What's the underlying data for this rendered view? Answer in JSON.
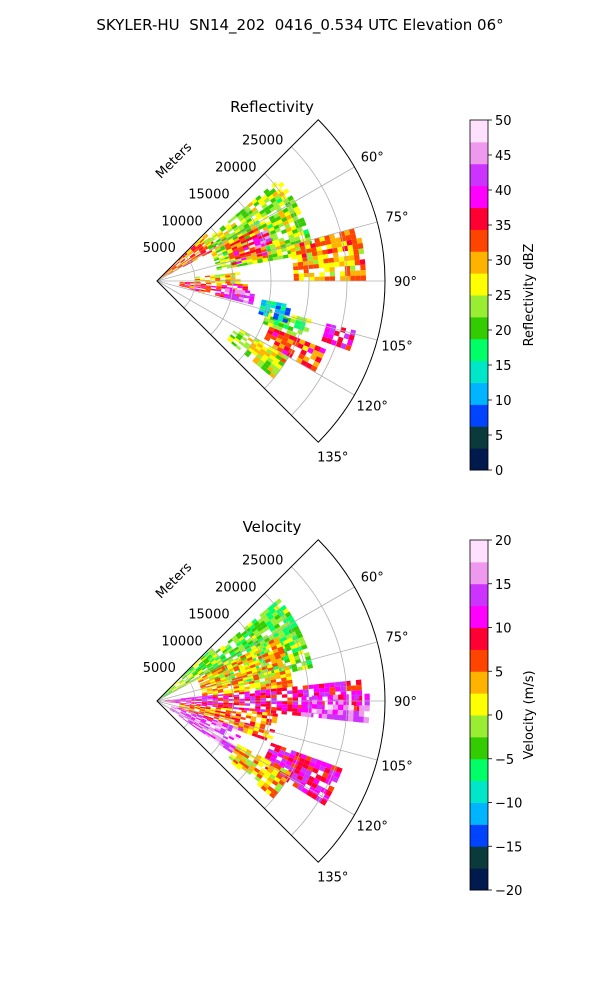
{
  "figure": {
    "title": "SKYLER-HU  SN14_202  0416_0.534 UTC Elevation 06°"
  },
  "chart_data": [
    {
      "type": "polar-sector",
      "title": "Reflectivity",
      "radial_label": "Meters",
      "radial_ticks": [
        5000,
        10000,
        15000,
        20000,
        25000
      ],
      "radial_max": 30000,
      "azimuth_range_deg": [
        45,
        135
      ],
      "angular_ticks": [
        "60°",
        "75°",
        "90°",
        "105°",
        "120°",
        "135°"
      ],
      "angular_tick_values": [
        60,
        75,
        90,
        105,
        120,
        135
      ],
      "colorbar": {
        "label": "Reflectivity dBZ",
        "range": [
          0,
          50
        ],
        "ticks": [
          0,
          5,
          10,
          15,
          20,
          25,
          30,
          35,
          40,
          45,
          50
        ],
        "colors": [
          "#001a4d",
          "#0a3a3a",
          "#0044ff",
          "#00b4ff",
          "#00e6c8",
          "#00ff66",
          "#33cc00",
          "#99ee33",
          "#ffff00",
          "#ffb300",
          "#ff4400",
          "#ff0033",
          "#ff00ff",
          "#cc33ff",
          "#ee99ee",
          "#ffe0ff"
        ]
      },
      "echo_regions": [
        {
          "az": [
            46,
            62
          ],
          "r": [
            300,
            9000
          ],
          "dbz": 32
        },
        {
          "az": [
            50,
            80
          ],
          "r": [
            8000,
            21000
          ],
          "dbz": 24
        },
        {
          "az": [
            62,
            78
          ],
          "r": [
            10000,
            15000
          ],
          "dbz": 33
        },
        {
          "az": [
            65,
            72
          ],
          "r": [
            13000,
            16000
          ],
          "dbz": 42
        },
        {
          "az": [
            75,
            90
          ],
          "r": [
            18000,
            27500
          ],
          "dbz": 30
        },
        {
          "az": [
            84,
            92
          ],
          "r": [
            5000,
            11000
          ],
          "dbz": 28
        },
        {
          "az": [
            92,
            104
          ],
          "r": [
            3000,
            12000
          ],
          "dbz": 34
        },
        {
          "az": [
            96,
            104
          ],
          "r": [
            9000,
            13000
          ],
          "dbz": 43
        },
        {
          "az": [
            104,
            112
          ],
          "r": [
            15000,
            21000
          ],
          "dbz": 21
        },
        {
          "az": [
            112,
            120
          ],
          "r": [
            16000,
            24000
          ],
          "dbz": 33
        },
        {
          "az": [
            104,
            110
          ],
          "r": [
            23000,
            27000
          ],
          "dbz": 38
        },
        {
          "az": [
            120,
            130
          ],
          "r": [
            12000,
            20000
          ],
          "dbz": 26
        },
        {
          "az": [
            100,
            108
          ],
          "r": [
            14000,
            18000
          ],
          "dbz": 12
        }
      ]
    },
    {
      "type": "polar-sector",
      "title": "Velocity",
      "radial_label": "Meters",
      "radial_ticks": [
        5000,
        10000,
        15000,
        20000,
        25000
      ],
      "radial_max": 30000,
      "azimuth_range_deg": [
        45,
        135
      ],
      "angular_ticks": [
        "60°",
        "75°",
        "90°",
        "105°",
        "120°",
        "135°"
      ],
      "angular_tick_values": [
        60,
        75,
        90,
        105,
        120,
        135
      ],
      "colorbar": {
        "label": "Velocity (m/s)",
        "range": [
          -20,
          20
        ],
        "ticks": [
          -20,
          -15,
          -10,
          -5,
          0,
          5,
          10,
          15,
          20
        ],
        "colors": [
          "#001a4d",
          "#0a3a3a",
          "#0044ff",
          "#00b4ff",
          "#00e6c8",
          "#00ff66",
          "#33cc00",
          "#99ee33",
          "#ffff00",
          "#ffb300",
          "#ff4400",
          "#ff0033",
          "#ff00ff",
          "#cc33ff",
          "#ee99ee",
          "#ffe0ff"
        ]
      },
      "echo_regions": [
        {
          "az": [
            46,
            62
          ],
          "r": [
            300,
            10000
          ],
          "vel": -2
        },
        {
          "az": [
            50,
            78
          ],
          "r": [
            8000,
            21000
          ],
          "vel": -3
        },
        {
          "az": [
            62,
            84
          ],
          "r": [
            6000,
            18000
          ],
          "vel": 3
        },
        {
          "az": [
            84,
            96
          ],
          "r": [
            1000,
            27000
          ],
          "vel": 10
        },
        {
          "az": [
            88,
            96
          ],
          "r": [
            19000,
            28000
          ],
          "vel": 14
        },
        {
          "az": [
            96,
            110
          ],
          "r": [
            3000,
            16000
          ],
          "vel": 5
        },
        {
          "az": [
            108,
            125
          ],
          "r": [
            2000,
            12000
          ],
          "vel": 15
        },
        {
          "az": [
            110,
            122
          ],
          "r": [
            16000,
            26000
          ],
          "vel": 10
        },
        {
          "az": [
            118,
            130
          ],
          "r": [
            12000,
            20000
          ],
          "vel": 3
        }
      ]
    }
  ]
}
